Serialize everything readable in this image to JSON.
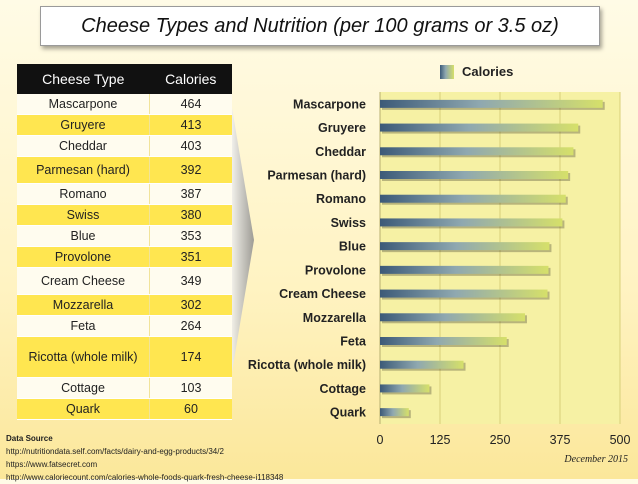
{
  "chart_data": {
    "type": "bar",
    "orientation": "horizontal",
    "title": "Cheese Types and Nutrition (per 100 grams or 3.5 oz)",
    "categories": [
      "Mascarpone",
      "Gruyere",
      "Cheddar",
      "Parmesan (hard)",
      "Romano",
      "Swiss",
      "Blue",
      "Provolone",
      "Cream Cheese",
      "Mozzarella",
      "Feta",
      "Ricotta (whole milk)",
      "Cottage",
      "Quark"
    ],
    "series": [
      {
        "name": "Calories",
        "values": [
          464,
          413,
          403,
          392,
          387,
          380,
          353,
          351,
          349,
          302,
          264,
          174,
          103,
          60
        ]
      }
    ],
    "xlim": [
      0,
      500
    ],
    "x_ticks": [
      "0",
      "125",
      "250",
      "375",
      "500"
    ],
    "legend": "top",
    "grid": true,
    "colors": {
      "bar_start": "#3c5a78",
      "bar_mid": "#8fa8b0",
      "bar_end": "#d6e06a",
      "plot_bg": "#f6f1a4"
    }
  },
  "table": {
    "headers": [
      "Cheese Type",
      "Calories"
    ],
    "rows": [
      [
        "Mascarpone",
        "464"
      ],
      [
        "Gruyere",
        "413"
      ],
      [
        "Cheddar",
        "403"
      ],
      [
        "Parmesan (hard)",
        "392"
      ],
      [
        "Romano",
        "387"
      ],
      [
        "Swiss",
        "380"
      ],
      [
        "Blue",
        "353"
      ],
      [
        "Provolone",
        "351"
      ],
      [
        "Cream Cheese",
        "349"
      ],
      [
        "Mozzarella",
        "302"
      ],
      [
        "Feta",
        "264"
      ],
      [
        "Ricotta (whole milk)",
        "174"
      ],
      [
        "Cottage",
        "103"
      ],
      [
        "Quark",
        "60"
      ]
    ]
  },
  "source": {
    "header": "Data Source",
    "lines": [
      "http://nutritiondata.self.com/facts/dairy-and-egg-products/34/2",
      "https://www.fatsecret.com",
      "http://www.caloriecount.com/calories-whole-foods-quark-fresh-cheese-i118348"
    ]
  },
  "date": "December 2015"
}
